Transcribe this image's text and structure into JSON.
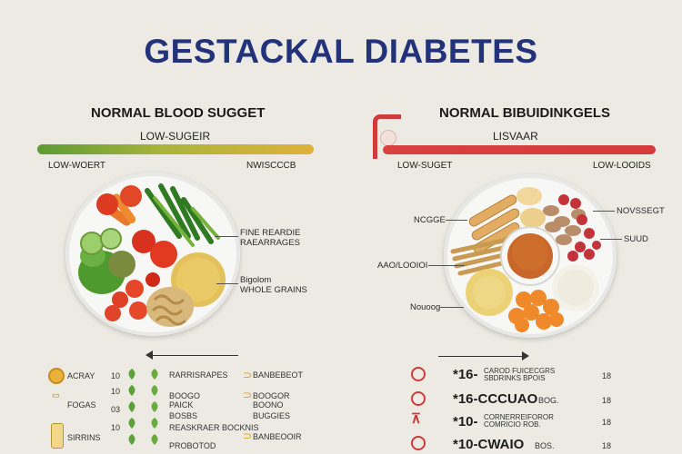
{
  "title": "GESTACKAL DIABETES",
  "left": {
    "heading": "NORMAL BLOOD SUGGET",
    "bar_label": "LOW-SUGEIR",
    "scale_left": "LOW-WOERT",
    "scale_right": "NWISCCCB",
    "ann_1a": "FINE REARDIE",
    "ann_1b": "RAEARRAGES",
    "ann_2a": "Bigolom",
    "ann_2b": "WHOLE GRAINS",
    "list": {
      "c1": [
        "ACRAY",
        "FOGAS",
        "SIRRINS"
      ],
      "nums": [
        "10",
        "10",
        "03",
        "10"
      ],
      "c3": [
        "RARRISRAPES",
        "BOOGO",
        "PAICK",
        "BOSBS",
        "REASKRAER BOCKNIS",
        "PROBOTOD"
      ],
      "c4": [
        "BANBEBEOT",
        "BOOGOR",
        "BOONO",
        "BUGGIES",
        "BANBEOOIR"
      ]
    }
  },
  "right": {
    "heading": "NORMAL BIBUIDINKGELS",
    "bar_label": "LISVAAR",
    "scale_left": "LOW-SUGET",
    "scale_right": "LOW-LOOIDS",
    "ann_l1": "NCGGE",
    "ann_l2": "AAO/LOOIOI",
    "ann_l3": "Nouoog",
    "ann_r1": "NOVSSEGT",
    "ann_r2": "SUUD",
    "list": {
      "rows": [
        {
          "big": "*16-",
          "sub": "CAROD FUICECGRS\nSBDRINKS BPOIS",
          "num": "18"
        },
        {
          "big": "*16-CCCUAO",
          "sub": "BOG.",
          "num": "18"
        },
        {
          "big": "*10-",
          "sub": "CORNERREIFOROR\nCOMRICIO ROB.",
          "num": "18"
        },
        {
          "big": "*10-CWAIO",
          "sub": "BOS.",
          "num": "18"
        }
      ]
    }
  }
}
